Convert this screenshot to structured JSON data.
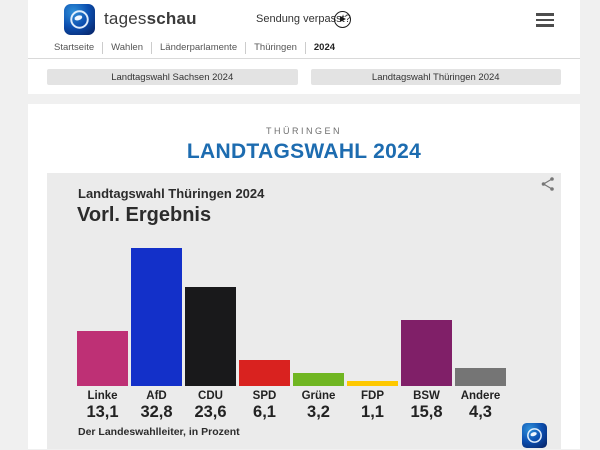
{
  "header": {
    "brand_regular": "tages",
    "brand_bold": "schau",
    "sendung_verpasst_label": "Sendung verpasst?",
    "breadcrumb": [
      "Startseite",
      "Wahlen",
      "Länderparlamente",
      "Thüringen",
      "2024"
    ]
  },
  "tabs": [
    {
      "label": "Landtagswahl Sachsen 2024"
    },
    {
      "label": "Landtagswahl Thüringen 2024"
    }
  ],
  "content": {
    "eyebrow": "THÜRINGEN",
    "title": "LANDTAGSWAHL 2024"
  },
  "card": {
    "subtitle": "Landtagswahl Thüringen 2024",
    "title": "Vorl. Ergebnis",
    "source": "Der Landeswahlleiter, in Prozent"
  },
  "icons": {
    "logo": "tagesschau-globe",
    "play": "play-circle",
    "menu": "hamburger",
    "share": "share-nodes"
  },
  "colors": {
    "accent_blue": "#1d6cb0",
    "page_bg": "#f0f0f0",
    "card_bg": "#ebebeb"
  },
  "chart_data": {
    "type": "bar",
    "title": "Vorl. Ergebnis",
    "subtitle": "Landtagswahl Thüringen 2024",
    "categories": [
      "Linke",
      "AfD",
      "CDU",
      "SPD",
      "Grüne",
      "FDP",
      "BSW",
      "Andere"
    ],
    "values": [
      13.1,
      32.8,
      23.6,
      6.1,
      3.2,
      1.1,
      15.8,
      4.3
    ],
    "value_labels": [
      "13,1",
      "32,8",
      "23,6",
      "6,1",
      "3,2",
      "1,1",
      "15,8",
      "4,3"
    ],
    "colors": [
      "#be3075",
      "#1330c9",
      "#19191b",
      "#d9221f",
      "#70b622",
      "#fec800",
      "#801f68",
      "#757575"
    ],
    "unit": "Prozent",
    "source": "Der Landeswahlleiter, in Prozent",
    "xlabel": "",
    "ylabel": "",
    "ylim": [
      0,
      35
    ],
    "grid": false,
    "legend": "none"
  }
}
